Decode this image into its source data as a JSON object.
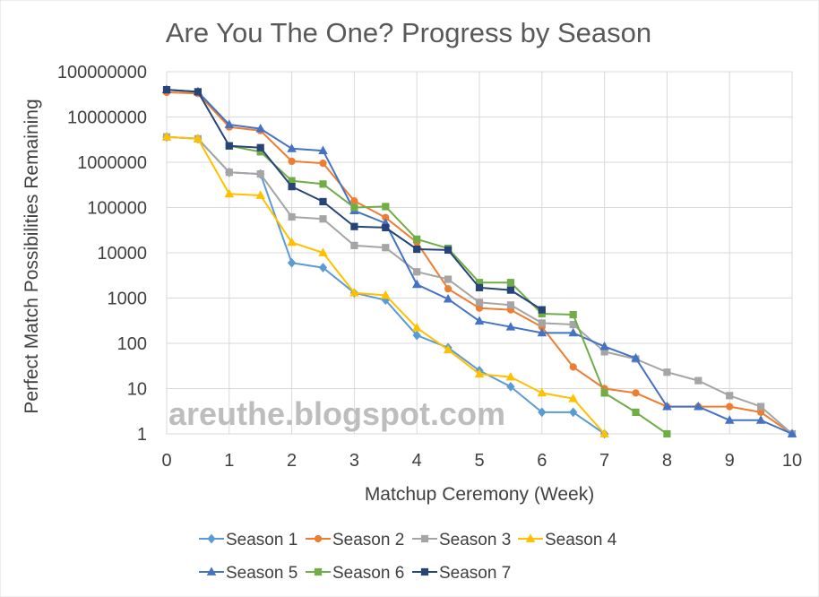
{
  "chart_data": {
    "type": "line",
    "title": "Are You The One? Progress by Season",
    "xlabel": "Matchup Ceremony (Week)",
    "ylabel": "Perfect Match Possibilities Remaining",
    "watermark": "areuthe.blogspot.com",
    "xlim": [
      0,
      10
    ],
    "ylim": [
      1,
      100000000
    ],
    "yscale": "log",
    "grid": true,
    "legend_position": "bottom",
    "x_ticks": [
      "0",
      "1",
      "2",
      "3",
      "4",
      "5",
      "6",
      "7",
      "8",
      "9",
      "10"
    ],
    "y_ticks": [
      "1",
      "10",
      "100",
      "1000",
      "10000",
      "100000",
      "1000000",
      "10000000",
      "100000000"
    ],
    "series": [
      {
        "name": "Season 1",
        "color": "#5b9bd5",
        "marker": "diamond",
        "points": [
          [
            0,
            3628800
          ],
          [
            0.5,
            3300000
          ],
          [
            1,
            600000
          ],
          [
            1.5,
            550000
          ],
          [
            2,
            6000
          ],
          [
            2.5,
            4700
          ],
          [
            3,
            1300
          ],
          [
            3.5,
            900
          ],
          [
            4,
            150
          ],
          [
            4.5,
            80
          ],
          [
            5,
            25
          ],
          [
            5.5,
            11
          ],
          [
            6,
            3
          ],
          [
            6.5,
            3
          ],
          [
            7,
            1
          ]
        ]
      },
      {
        "name": "Season 2",
        "color": "#ed7d31",
        "marker": "circle",
        "points": [
          [
            0,
            35000000
          ],
          [
            0.5,
            33000000
          ],
          [
            1,
            6000000
          ],
          [
            1.5,
            5000000
          ],
          [
            2,
            1050000
          ],
          [
            2.5,
            950000
          ],
          [
            3,
            140000
          ],
          [
            3.5,
            60000
          ],
          [
            4,
            17000
          ],
          [
            4.5,
            1600
          ],
          [
            5,
            600
          ],
          [
            5.5,
            550
          ],
          [
            6,
            230
          ],
          [
            6.5,
            30
          ],
          [
            7,
            10
          ],
          [
            7.5,
            8
          ],
          [
            8,
            4
          ],
          [
            8.5,
            4
          ],
          [
            9,
            4
          ],
          [
            9.5,
            3
          ],
          [
            10,
            1
          ]
        ]
      },
      {
        "name": "Season 3",
        "color": "#a5a5a5",
        "marker": "square",
        "points": [
          [
            0,
            3628800
          ],
          [
            0.5,
            3300000
          ],
          [
            1,
            600000
          ],
          [
            1.5,
            550000
          ],
          [
            2,
            62000
          ],
          [
            2.5,
            56000
          ],
          [
            3,
            14500
          ],
          [
            3.5,
            13000
          ],
          [
            4,
            3800
          ],
          [
            4.5,
            2600
          ],
          [
            5,
            800
          ],
          [
            5.5,
            700
          ],
          [
            6,
            280
          ],
          [
            6.5,
            260
          ],
          [
            7,
            65
          ],
          [
            7.5,
            45
          ],
          [
            8,
            23
          ],
          [
            8.5,
            15
          ],
          [
            9,
            7
          ],
          [
            9.5,
            4
          ],
          [
            10,
            1
          ]
        ]
      },
      {
        "name": "Season 4",
        "color": "#ffc000",
        "marker": "triangle",
        "points": [
          [
            0,
            3628800
          ],
          [
            0.5,
            3300000
          ],
          [
            1,
            200000
          ],
          [
            1.5,
            185000
          ],
          [
            2,
            17000
          ],
          [
            2.5,
            10000
          ],
          [
            3,
            1300
          ],
          [
            3.5,
            1150
          ],
          [
            4,
            220
          ],
          [
            4.5,
            72
          ],
          [
            5,
            21
          ],
          [
            5.5,
            18
          ],
          [
            6,
            8
          ],
          [
            6.5,
            6
          ],
          [
            7,
            1
          ]
        ]
      },
      {
        "name": "Season 5",
        "color": "#4472c4",
        "marker": "triangle",
        "points": [
          [
            0,
            39916800
          ],
          [
            0.5,
            36000000
          ],
          [
            1,
            6800000
          ],
          [
            1.5,
            5500000
          ],
          [
            2,
            2000000
          ],
          [
            2.5,
            1800000
          ],
          [
            3,
            85000
          ],
          [
            3.5,
            45000
          ],
          [
            4,
            2000
          ],
          [
            4.5,
            950
          ],
          [
            5,
            310
          ],
          [
            5.5,
            230
          ],
          [
            6,
            170
          ],
          [
            6.5,
            170
          ],
          [
            7,
            85
          ],
          [
            7.5,
            47
          ],
          [
            8,
            4
          ],
          [
            8.5,
            4
          ],
          [
            9,
            2
          ],
          [
            9.5,
            2
          ],
          [
            10,
            1
          ]
        ]
      },
      {
        "name": "Season 6",
        "color": "#70ad47",
        "marker": "square",
        "points": [
          [
            1,
            2300000
          ],
          [
            1.5,
            1700000
          ],
          [
            2,
            390000
          ],
          [
            2.5,
            330000
          ],
          [
            3,
            100000
          ],
          [
            3.5,
            105000
          ],
          [
            4,
            20000
          ],
          [
            4.5,
            12500
          ],
          [
            5,
            2200
          ],
          [
            5.5,
            2200
          ],
          [
            6,
            450
          ],
          [
            6.5,
            430
          ],
          [
            7,
            8
          ],
          [
            7.5,
            3
          ],
          [
            8,
            1
          ]
        ]
      },
      {
        "name": "Season 7",
        "color": "#264478",
        "marker": "square",
        "points": [
          [
            0,
            39916800
          ],
          [
            0.5,
            36000000
          ],
          [
            1,
            2300000
          ],
          [
            1.5,
            2100000
          ],
          [
            2,
            290000
          ],
          [
            2.5,
            135000
          ],
          [
            3,
            38000
          ],
          [
            3.5,
            36000
          ],
          [
            4,
            12000
          ],
          [
            4.5,
            11500
          ],
          [
            5,
            1700
          ],
          [
            5.5,
            1500
          ],
          [
            6,
            550
          ]
        ]
      }
    ]
  }
}
